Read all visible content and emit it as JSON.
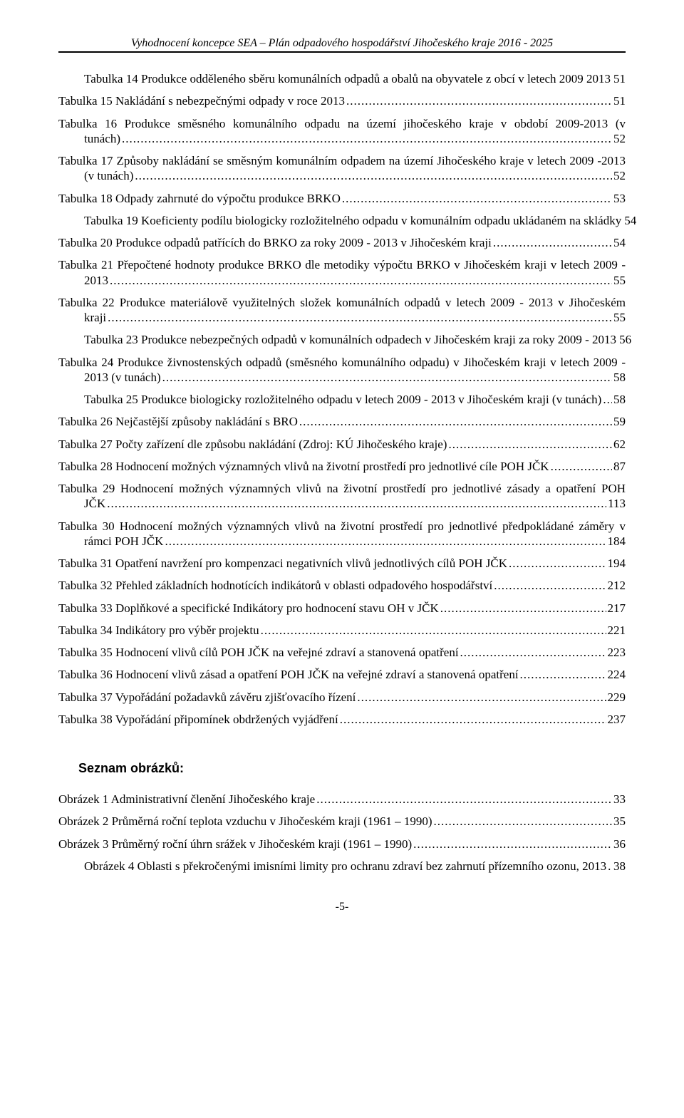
{
  "page": {
    "header": "Vyhodnocení koncepce SEA – Plán odpadového hospodářství Jihočeského kraje 2016 - 2025",
    "footer_page": "-5-"
  },
  "colors": {
    "text": "#000000",
    "background": "#ffffff",
    "rule": "#000000"
  },
  "typography": {
    "body_family": "Times New Roman",
    "body_size_pt": 12,
    "heading_family": "Arial",
    "heading_size_pt": 13,
    "heading_weight": "bold",
    "header_italic": true
  },
  "toc_tabulky": [
    {
      "title": "Tabulka 14 Produkce odděleného sběru komunálních odpadů a obalů na obyvatele z obcí v letech 2009 2013",
      "page": "51",
      "indented": true
    },
    {
      "title": "Tabulka 15 Nakládání s nebezpečnými odpady v roce 2013",
      "page": "51",
      "indented": false
    },
    {
      "title": "Tabulka 16 Produkce směsného komunálního odpadu na území jihočeského kraje v období 2009-2013 (v tunách)",
      "page": "52",
      "indented": true
    },
    {
      "title": "Tabulka 17 Způsoby nakládání se směsným komunálním odpadem na území Jihočeského kraje v letech 2009 -2013 (v tunách)",
      "page": "52",
      "indented": true
    },
    {
      "title": "Tabulka 18 Odpady zahrnuté do výpočtu produkce BRKO",
      "page": "53",
      "indented": false
    },
    {
      "title": "Tabulka 19 Koeficienty podílu biologicky rozložitelného odpadu v komunálním odpadu ukládaném na skládky",
      "page": "54",
      "indented": true
    },
    {
      "title": "Tabulka 20 Produkce odpadů patřících do BRKO za roky 2009 - 2013 v Jihočeském kraji",
      "page": "54",
      "indented": false
    },
    {
      "title": "Tabulka 21 Přepočtené hodnoty produkce BRKO dle metodiky výpočtu BRKO v Jihočeském kraji v letech 2009 - 2013",
      "page": "55",
      "indented": true
    },
    {
      "title": "Tabulka 22 Produkce materiálově využitelných složek komunálních odpadů v letech 2009 - 2013 v Jihočeském kraji",
      "page": "55",
      "indented": true
    },
    {
      "title": "Tabulka 23 Produkce nebezpečných odpadů v komunálních odpadech v Jihočeském kraji za roky 2009 - 2013",
      "page": "56",
      "indented": true
    },
    {
      "title": "Tabulka 24 Produkce živnostenských odpadů (směsného komunálního odpadu) v Jihočeském kraji v letech 2009 - 2013 (v tunách)",
      "page": "58",
      "indented": true
    },
    {
      "title": "Tabulka 25 Produkce biologicky rozložitelného odpadu v letech 2009 - 2013 v Jihočeském kraji (v tunách)",
      "page": "58",
      "indented": true
    },
    {
      "title": "Tabulka 26 Nejčastější způsoby nakládání s BRO",
      "page": "59",
      "indented": false
    },
    {
      "title": "Tabulka 27 Počty zařízení dle způsobu nakládání (Zdroj: KÚ Jihočeského kraje)",
      "page": "62",
      "indented": false
    },
    {
      "title": "Tabulka 28 Hodnocení možných významných vlivů na životní prostředí pro jednotlivé cíle POH JČK",
      "page": "87",
      "indented": false
    },
    {
      "title": "Tabulka 29 Hodnocení možných významných vlivů na životní prostředí pro jednotlivé zásady a opatření POH JČK",
      "page": "113",
      "indented": true
    },
    {
      "title": "Tabulka 30 Hodnocení možných významných vlivů na životní prostředí pro jednotlivé předpokládané záměry v rámci POH JČK",
      "page": "184",
      "indented": true
    },
    {
      "title": "Tabulka 31 Opatření navržení pro kompenzaci negativních vlivů jednotlivých cílů POH JČK",
      "page": "194",
      "indented": false
    },
    {
      "title": "Tabulka 32 Přehled základních hodnotících indikátorů v oblasti odpadového hospodářství",
      "page": "212",
      "indented": false
    },
    {
      "title": "Tabulka 33 Doplňkové a specifické Indikátory pro hodnocení stavu OH v JČK",
      "page": "217",
      "indented": false
    },
    {
      "title": "Tabulka 34 Indikátory pro výběr projektu",
      "page": "221",
      "indented": false
    },
    {
      "title": "Tabulka 35 Hodnocení vlivů cílů POH JČK na veřejné zdraví a stanovená opatření",
      "page": "223",
      "indented": false
    },
    {
      "title": "Tabulka 36 Hodnocení vlivů zásad a opatření POH JČK na veřejné zdraví a stanovená opatření",
      "page": "224",
      "indented": false
    },
    {
      "title": "Tabulka 37 Vypořádání požadavků závěru zjišťovacího řízení",
      "page": "229",
      "indented": false
    },
    {
      "title": "Tabulka 38 Vypořádání připomínek obdržených vyjádření",
      "page": "237",
      "indented": false
    }
  ],
  "section_heading_obrazky": "Seznam obrázků:",
  "toc_obrazky": [
    {
      "title": "Obrázek 1 Administrativní členění Jihočeského kraje",
      "page": "33",
      "indented": false
    },
    {
      "title": "Obrázek 2 Průměrná roční teplota vzduchu v Jihočeském kraji (1961 – 1990)",
      "page": "35",
      "indented": false
    },
    {
      "title": "Obrázek 3 Průměrný roční úhrn srážek v Jihočeském kraji (1961 – 1990)",
      "page": "36",
      "indented": false
    },
    {
      "title": "Obrázek 4 Oblasti s překročenými imisními limity pro ochranu zdraví bez zahrnutí přízemního ozonu, 2013",
      "page": "38",
      "indented": true
    }
  ]
}
